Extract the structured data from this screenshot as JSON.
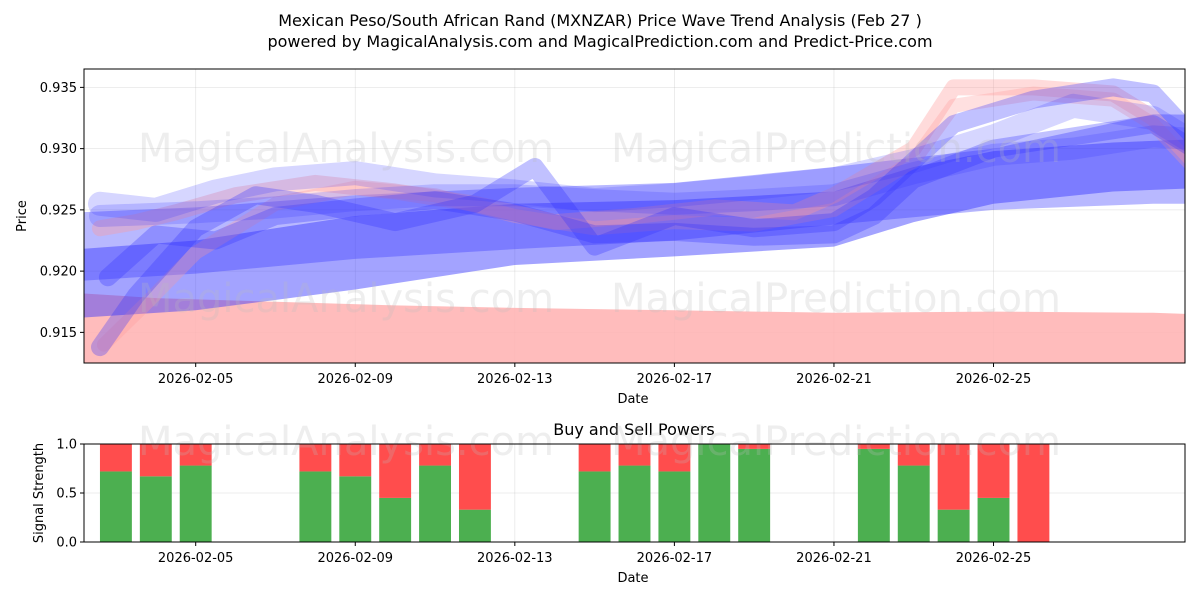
{
  "header": {
    "title_line1": "Mexican Peso/South African Rand (MXNZAR) Price Wave Trend Analysis (Feb 27 )",
    "title_line2": "powered by MagicalAnalysis.com and MagicalPrediction.com and Predict-Price.com"
  },
  "watermarks": [
    "MagicalAnalysis.com",
    "MagicalPrediction.com"
  ],
  "colors": {
    "buy": "#4caf50",
    "sell": "#ff4d4d",
    "wave_blue": "#3333ff",
    "wave_red": "#ff9999",
    "band_red": "#ffb0b0"
  },
  "chart_data": [
    {
      "type": "area",
      "title": "",
      "xlabel": "Date",
      "ylabel": "Price",
      "ylim": [
        0.9125,
        0.9365
      ],
      "xlim_days": [
        -2.8,
        24.8
      ],
      "x_origin": "2026-02-05",
      "yticks": [
        0.915,
        0.92,
        0.925,
        0.93,
        0.935
      ],
      "ytick_labels": [
        "0.915",
        "0.920",
        "0.925",
        "0.930",
        "0.935"
      ],
      "xticks_days": [
        0,
        4,
        8,
        12,
        16,
        20
      ],
      "xtick_labels": [
        "2026-02-05",
        "2026-02-09",
        "2026-02-13",
        "2026-02-17",
        "2026-02-21",
        "2026-02-25"
      ],
      "grid": true,
      "bands": [
        {
          "name": "support-band",
          "color": "red",
          "alpha": 0.85,
          "x": [
            -2.9,
            -1,
            2,
            5,
            8,
            12,
            16,
            20,
            24,
            26.8
          ],
          "upper": [
            0.9182,
            0.9178,
            0.9175,
            0.9172,
            0.917,
            0.9168,
            0.9166,
            0.9167,
            0.9166,
            0.9163
          ],
          "lower": [
            0.9125,
            0.9125,
            0.9125,
            0.9125,
            0.9125,
            0.9125,
            0.9125,
            0.9125,
            0.9125,
            0.9125
          ]
        },
        {
          "name": "trend-band-lower",
          "color": "blue",
          "alpha": 0.45,
          "x": [
            -2.9,
            0,
            4,
            8,
            12,
            16,
            18,
            20,
            23,
            26.8
          ],
          "upper": [
            0.9218,
            0.9225,
            0.9245,
            0.9255,
            0.9258,
            0.9265,
            0.9285,
            0.9298,
            0.9305,
            0.931
          ],
          "lower": [
            0.9162,
            0.9168,
            0.9185,
            0.9205,
            0.9212,
            0.922,
            0.924,
            0.9255,
            0.9265,
            0.927
          ]
        },
        {
          "name": "trend-band-upper",
          "color": "blue",
          "alpha": 0.35,
          "x": [
            -2.9,
            0,
            4,
            8,
            12,
            16,
            20,
            24,
            26.8
          ],
          "upper": [
            0.9248,
            0.9252,
            0.9262,
            0.9268,
            0.9272,
            0.9285,
            0.93,
            0.9328,
            0.9327
          ],
          "lower": [
            0.9192,
            0.9198,
            0.921,
            0.9218,
            0.9225,
            0.9238,
            0.925,
            0.9255,
            0.9255
          ]
        }
      ],
      "waves": [
        {
          "name": "wave-red-1",
          "color": "red",
          "alpha": 0.35,
          "width": 16,
          "x": [
            -2.4,
            -1.5,
            -0.5,
            1,
            3,
            5,
            7,
            9,
            11,
            13,
            15,
            16,
            18,
            19,
            21,
            23,
            24,
            25,
            26.3
          ],
          "y": [
            0.9235,
            0.924,
            0.9248,
            0.9262,
            0.9272,
            0.9265,
            0.9255,
            0.924,
            0.9245,
            0.9252,
            0.9248,
            0.9262,
            0.93,
            0.935,
            0.935,
            0.9345,
            0.9325,
            0.929,
            0.9225
          ]
        },
        {
          "name": "wave-red-2",
          "color": "red",
          "alpha": 0.3,
          "width": 14,
          "x": [
            -2.3,
            -1.2,
            0,
            2,
            4,
            6,
            8,
            10,
            12,
            14,
            16,
            18,
            19,
            21,
            23,
            24,
            25,
            26.3
          ],
          "y": [
            0.914,
            0.9175,
            0.9215,
            0.9255,
            0.9268,
            0.9262,
            0.9245,
            0.9235,
            0.924,
            0.9238,
            0.925,
            0.929,
            0.9335,
            0.9345,
            0.934,
            0.932,
            0.9285,
            0.9235
          ]
        },
        {
          "name": "wave-blue-1",
          "color": "blue",
          "alpha": 0.3,
          "width": 18,
          "x": [
            -2.4,
            -1.5,
            0,
            1.5,
            3,
            5,
            7,
            8.5,
            10,
            12,
            14,
            16,
            17,
            19,
            21,
            23,
            24,
            25,
            26.3
          ],
          "y": [
            0.9138,
            0.918,
            0.9235,
            0.9262,
            0.9255,
            0.924,
            0.9255,
            0.9285,
            0.922,
            0.9245,
            0.9235,
            0.924,
            0.926,
            0.932,
            0.934,
            0.935,
            0.9345,
            0.931,
            0.9275
          ]
        },
        {
          "name": "wave-blue-2",
          "color": "blue",
          "alpha": 0.3,
          "width": 18,
          "x": [
            -2.2,
            -1,
            0.5,
            2,
            4,
            6,
            8,
            10,
            12,
            14,
            16,
            17,
            18,
            20,
            22,
            24,
            25,
            26.3
          ],
          "y": [
            0.9195,
            0.923,
            0.9225,
            0.9245,
            0.9252,
            0.9258,
            0.9248,
            0.923,
            0.9232,
            0.9228,
            0.923,
            0.9245,
            0.9275,
            0.93,
            0.931,
            0.932,
            0.93,
            0.9285
          ]
        },
        {
          "name": "wave-blue-3",
          "color": "blue",
          "alpha": 0.2,
          "width": 24,
          "x": [
            -2.4,
            -1,
            0.5,
            2,
            4,
            6,
            8,
            10,
            12,
            14,
            16,
            18,
            20,
            22,
            24,
            25,
            26.3
          ],
          "y": [
            0.9255,
            0.925,
            0.9265,
            0.9275,
            0.928,
            0.927,
            0.9265,
            0.9258,
            0.9262,
            0.9268,
            0.9275,
            0.929,
            0.931,
            0.9335,
            0.9325,
            0.9305,
            0.928
          ]
        },
        {
          "name": "wave-blue-4",
          "color": "blue",
          "alpha": 0.2,
          "width": 22,
          "x": [
            -2.4,
            0,
            2,
            4,
            6,
            8,
            10,
            12,
            14,
            16,
            18,
            20,
            22,
            24,
            26.3
          ],
          "y": [
            0.9245,
            0.9248,
            0.9252,
            0.9258,
            0.9262,
            0.9262,
            0.9258,
            0.9255,
            0.9258,
            0.9262,
            0.928,
            0.9295,
            0.93,
            0.931,
            0.9305
          ]
        }
      ]
    },
    {
      "type": "bar",
      "title": "Buy and Sell Powers",
      "xlabel": "Date",
      "ylabel": "Signal Strength",
      "ylim": [
        0,
        1
      ],
      "yticks": [
        0,
        0.5,
        1
      ],
      "ytick_labels": [
        "0.0",
        "0.5",
        "1.0"
      ],
      "xlim_days": [
        -2.8,
        24.8
      ],
      "x_origin": "2026-02-05",
      "xticks_days": [
        0,
        4,
        8,
        12,
        16,
        20
      ],
      "xtick_labels": [
        "2026-02-05",
        "2026-02-09",
        "2026-02-13",
        "2026-02-17",
        "2026-02-21",
        "2026-02-25"
      ],
      "grid": true,
      "categories_days": [
        -2,
        -1,
        0,
        3,
        4,
        5,
        6,
        7,
        10,
        11,
        12,
        13,
        14,
        17,
        18,
        19,
        20,
        21
      ],
      "series": [
        {
          "name": "buy",
          "values": [
            0.72,
            0.67,
            0.78,
            0.72,
            0.67,
            0.45,
            0.78,
            0.33,
            0.72,
            0.78,
            0.72,
            1.0,
            0.95,
            0.95,
            0.78,
            0.33,
            0.45,
            0.0
          ]
        },
        {
          "name": "sell",
          "values": [
            0.28,
            0.33,
            0.22,
            0.28,
            0.33,
            0.55,
            0.22,
            0.67,
            0.28,
            0.22,
            0.28,
            0.0,
            0.05,
            0.05,
            0.22,
            0.67,
            0.55,
            1.0
          ]
        }
      ]
    }
  ]
}
